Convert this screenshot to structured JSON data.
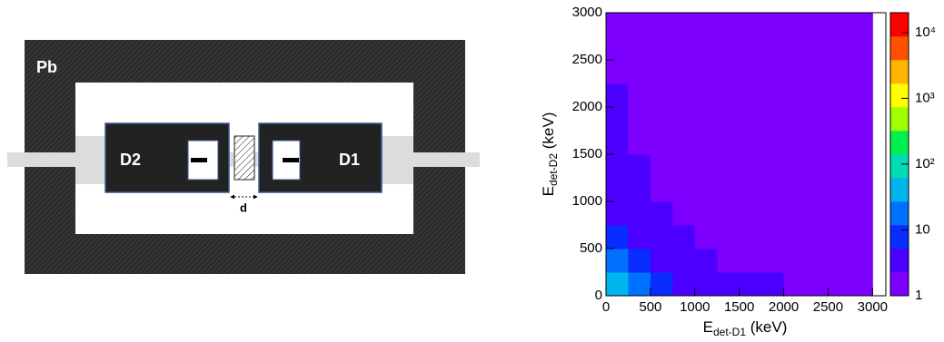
{
  "diagram": {
    "labels": {
      "shield": "Pb",
      "detector_left": "D2",
      "detector_right": "D1",
      "distance": "d"
    }
  },
  "chart_data": {
    "type": "heatmap",
    "xlabel": {
      "main": "E",
      "sub": "det-D1",
      "unit": " (keV)"
    },
    "ylabel": {
      "main": "E",
      "sub": "det-D2",
      "unit": " (keV)"
    },
    "xlim": [
      0,
      3150
    ],
    "ylim": [
      0,
      3000
    ],
    "xticks": [
      0,
      500,
      1000,
      1500,
      2000,
      2500,
      3000
    ],
    "yticks": [
      0,
      500,
      1000,
      1500,
      2000,
      2500,
      3000
    ],
    "x_bins": [
      0,
      250,
      500,
      750,
      1000,
      1250,
      1500,
      1750,
      2000,
      2250,
      2500,
      2750,
      3000
    ],
    "y_bins": [
      0,
      250,
      500,
      750,
      1000,
      1250,
      1500,
      1750,
      2000,
      2250,
      2500,
      2750,
      3000
    ],
    "z": [
      [
        60,
        15,
        8,
        5,
        4,
        3,
        3,
        2.5,
        2,
        2,
        2,
        2
      ],
      [
        15,
        6,
        4,
        3,
        2.5,
        2,
        2,
        2,
        1.5,
        1.5,
        1.5,
        1.5
      ],
      [
        8,
        4,
        3,
        2.5,
        2,
        2,
        1.5,
        1.5,
        1.5,
        1.3,
        1.3,
        1.3
      ],
      [
        5,
        3,
        2.5,
        2,
        2,
        1.5,
        1.5,
        1.3,
        1.3,
        1.2,
        1.2,
        1.2
      ],
      [
        4,
        2.5,
        2,
        2,
        1.5,
        1.5,
        1.3,
        1.3,
        1.2,
        1.2,
        1.1,
        1.1
      ],
      [
        3,
        2.5,
        2,
        1.5,
        1.5,
        1.3,
        1.3,
        1.2,
        1.2,
        1.1,
        1.1,
        1
      ],
      [
        3,
        2,
        2,
        1.5,
        1.3,
        1.3,
        1.2,
        1.2,
        1.1,
        1.1,
        1,
        1
      ],
      [
        2.5,
        2,
        1.5,
        1.5,
        1.3,
        1.2,
        1.2,
        1.1,
        1.1,
        1,
        1,
        1
      ],
      [
        2.5,
        2,
        1.5,
        1.3,
        1.2,
        1.2,
        1.1,
        1.1,
        1,
        1,
        1,
        1
      ],
      [
        2,
        1.5,
        1.5,
        1.3,
        1.2,
        1.1,
        1.1,
        1,
        1,
        1,
        1,
        1
      ],
      [
        2,
        1.5,
        1.3,
        1.2,
        1.1,
        1.1,
        1,
        1,
        1,
        1,
        1,
        1
      ],
      [
        2,
        1.5,
        1.3,
        1.2,
        1.1,
        1,
        1,
        1,
        1,
        1,
        1,
        1
      ]
    ],
    "zlim": [
      1,
      20000
    ],
    "zscale": "log",
    "zticks": [
      1,
      10,
      {
        "value": 100,
        "label": "10²"
      },
      {
        "value": 1000,
        "label": "10³"
      },
      {
        "value": 10000,
        "label": "10⁴"
      }
    ],
    "colormap": [
      "#7d00ff",
      "#4b00ff",
      "#0a2dff",
      "#0070ff",
      "#00b4f0",
      "#00dcb4",
      "#00f050",
      "#a0ff00",
      "#ffff00",
      "#ffb400",
      "#ff5000",
      "#ff0000"
    ]
  }
}
